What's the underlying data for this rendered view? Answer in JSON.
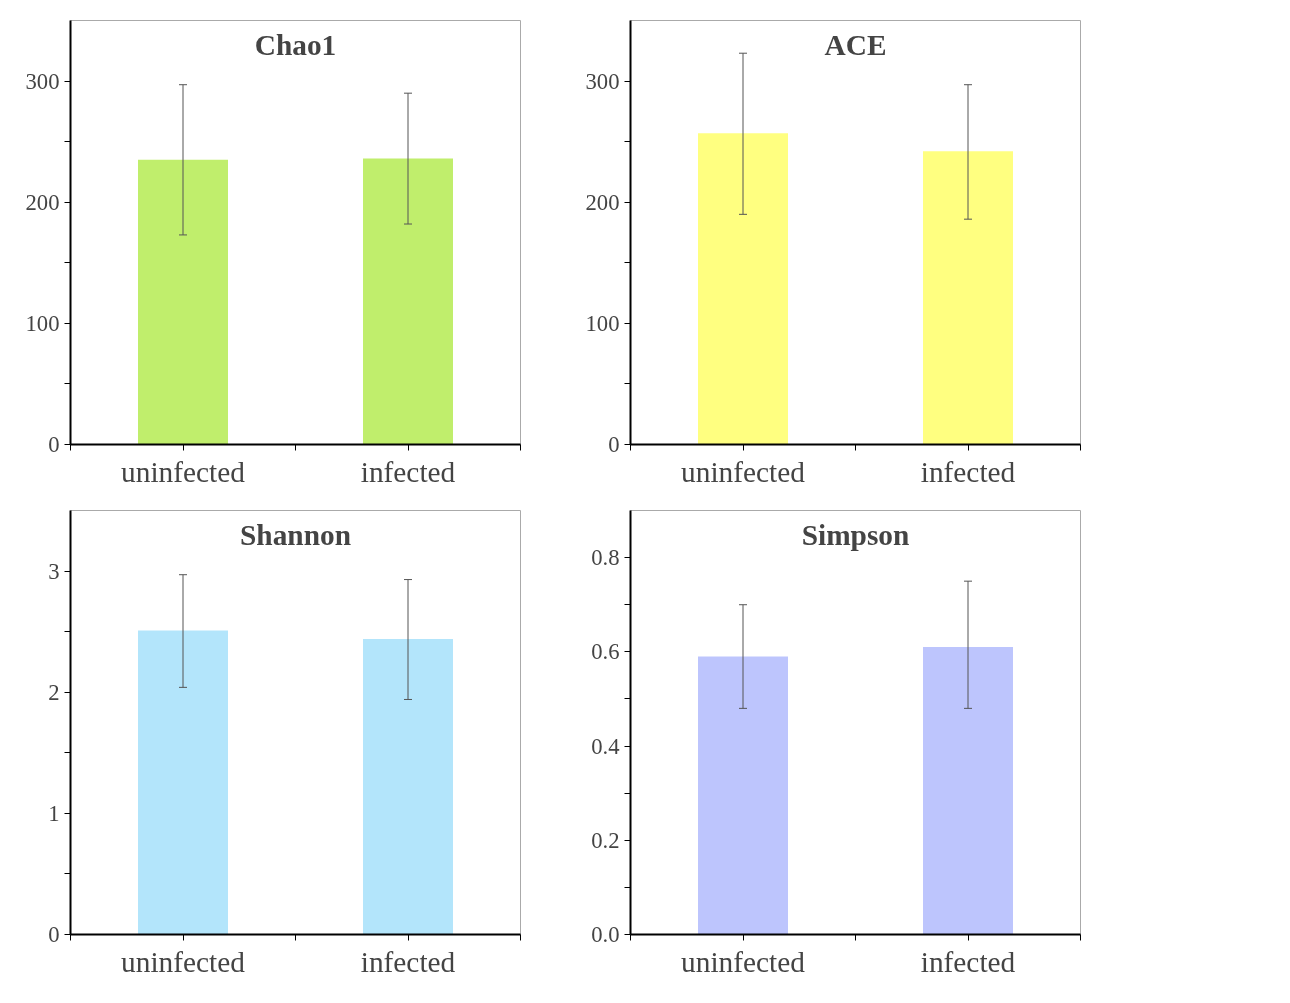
{
  "chart_data": [
    {
      "type": "bar",
      "title": "Chao1",
      "categories": [
        "uninfected",
        "infected"
      ],
      "values": [
        235,
        236
      ],
      "errors": [
        [
          173,
          297
        ],
        [
          182,
          290
        ]
      ],
      "color": "#c0ee6c",
      "ylim": [
        0,
        350
      ],
      "yticks": [
        0,
        {
          "value": 50,
          "label": null
        },
        100,
        {
          "value": 150,
          "label": null
        },
        200,
        {
          "value": 250,
          "label": null
        },
        300
      ],
      "grid": false
    },
    {
      "type": "bar",
      "title": "ACE",
      "categories": [
        "uninfected",
        "infected"
      ],
      "values": [
        257,
        242
      ],
      "errors": [
        [
          190,
          323
        ],
        [
          186,
          297
        ]
      ],
      "color": "#ffff80",
      "ylim": [
        0,
        350
      ],
      "yticks": [
        0,
        {
          "value": 50,
          "label": null
        },
        100,
        {
          "value": 150,
          "label": null
        },
        200,
        {
          "value": 250,
          "label": null
        },
        300
      ],
      "grid": false
    },
    {
      "type": "bar",
      "title": "Shannon",
      "categories": [
        "uninfected",
        "infected"
      ],
      "values": [
        2.51,
        2.44
      ],
      "errors": [
        [
          2.04,
          2.97
        ],
        [
          1.94,
          2.93
        ]
      ],
      "color": "#b3e5fb",
      "ylim": [
        0,
        3.5
      ],
      "yticks": [
        0,
        {
          "value": 0.5,
          "label": null
        },
        1,
        {
          "value": 1.5,
          "label": null
        },
        2,
        {
          "value": 2.5,
          "label": null
        },
        3
      ],
      "grid": false
    },
    {
      "type": "bar",
      "title": "Simpson",
      "categories": [
        "uninfected",
        "infected"
      ],
      "values": [
        0.59,
        0.61
      ],
      "errors": [
        [
          0.48,
          0.7
        ],
        [
          0.48,
          0.75
        ]
      ],
      "color": "#bdc5fd",
      "ylim": [
        0,
        0.9
      ],
      "yticks": [
        {
          "value": 0,
          "label": "0.0"
        },
        {
          "value": 0.1,
          "label": null
        },
        {
          "value": 0.2,
          "label": "0.2"
        },
        {
          "value": 0.3,
          "label": null
        },
        {
          "value": 0.4,
          "label": "0.4"
        },
        {
          "value": 0.5,
          "label": null
        },
        {
          "value": 0.6,
          "label": "0.6"
        },
        {
          "value": 0.7,
          "label": null
        },
        {
          "value": 0.8,
          "label": "0.8"
        }
      ],
      "grid": false
    }
  ]
}
